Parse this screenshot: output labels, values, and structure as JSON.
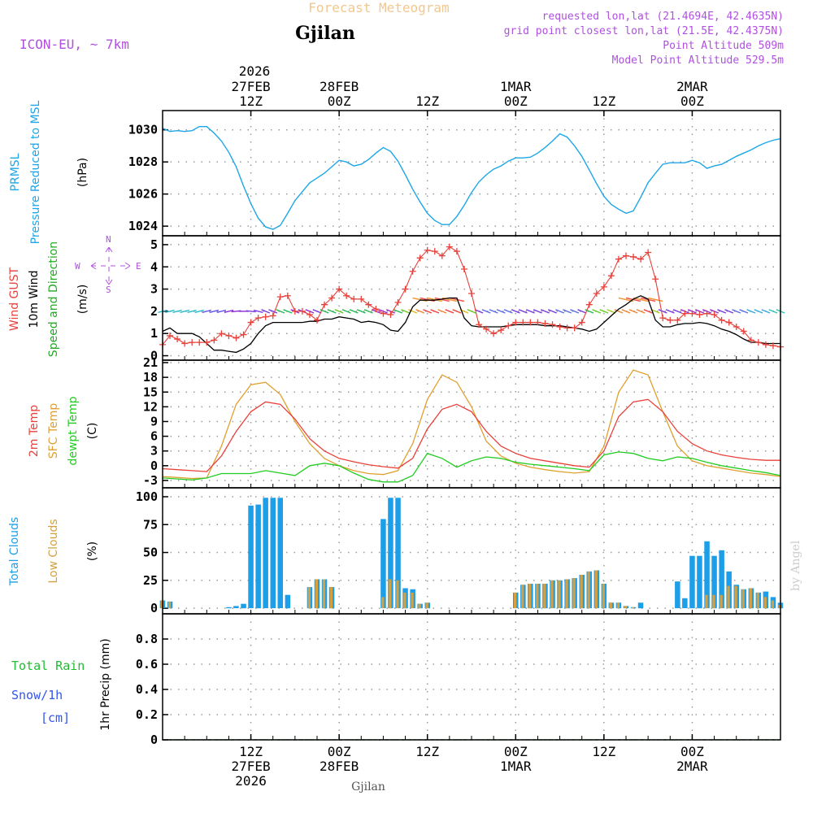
{
  "header": {
    "title": "Forecast Meteogram",
    "station": "Gjilan",
    "model": "ICON-EU, ~ 7km",
    "requested": "requested lon,lat (21.4694E, 42.4635N)",
    "gridpoint": "grid point closest lon,lat (21.5E, 42.4375N)",
    "point_altitude": "Point Altitude 509m",
    "model_altitude": "Model Point Altitude 529.5m",
    "footer_station": "Gjilan",
    "credit": "by Angel"
  },
  "time_axis": {
    "start_hour": 0,
    "end_hour": 84,
    "top_year": "2026",
    "ticks": [
      {
        "h": 12,
        "top": [
          "27FEB",
          "12Z"
        ],
        "bottom": [
          "12Z",
          "27FEB",
          "2026"
        ]
      },
      {
        "h": 24,
        "top": [
          "28FEB",
          "00Z"
        ],
        "bottom": [
          "00Z",
          "28FEB"
        ]
      },
      {
        "h": 36,
        "top": [
          "12Z"
        ],
        "bottom": [
          "12Z"
        ]
      },
      {
        "h": 48,
        "top": [
          "1MAR",
          "00Z"
        ],
        "bottom": [
          "00Z",
          "1MAR"
        ]
      },
      {
        "h": 60,
        "top": [
          "12Z"
        ],
        "bottom": [
          "12Z"
        ]
      },
      {
        "h": 72,
        "top": [
          "2MAR",
          "00Z"
        ],
        "bottom": [
          "00Z",
          "2MAR"
        ]
      }
    ]
  },
  "panels": {
    "pressure": {
      "label1": "PRMSL",
      "label2": "Pressure Reduced to MSL",
      "unit": "(hPa)"
    },
    "wind": {
      "label_gust": "Wind GUST",
      "label_wind": "10m Wind",
      "label_dir": "Speed and Direction",
      "unit": "(m/s)",
      "compass": {
        "n": "N",
        "s": "S",
        "e": "E",
        "w": "W"
      }
    },
    "temp": {
      "label_2m": "2m Temp",
      "label_sfc": "SFC Temp",
      "label_dew": "dewpt Temp",
      "unit": "(C)"
    },
    "clouds": {
      "label_total": "Total Clouds",
      "label_low": "Low Clouds",
      "unit": "(%)"
    },
    "precip": {
      "label_rain": "Total  Rain",
      "label_snow": "Snow/1h",
      "label_cm": "[cm]",
      "unit": "1hr Precip (mm)"
    }
  },
  "colors": {
    "pressure": "#1ca6e8",
    "gust": "#e8403a",
    "wind": "#000000",
    "temp2m": "#e8403a",
    "sfc": "#e0a030",
    "dew": "#22cc22",
    "total_cloud": "#1c9ee8",
    "low_cloud": "#d4a040",
    "rain": "#22bb33",
    "snow": "#3355ee",
    "title": "#f0c890",
    "meta": "#b050e0",
    "compass": "#b050e0"
  },
  "chart_data": [
    {
      "type": "line",
      "name": "PRMSL",
      "ylabel": "hPa",
      "ylim": [
        1023.4,
        1031.2
      ],
      "yticks": [
        1024,
        1026,
        1028,
        1030
      ],
      "x": [
        0,
        1,
        2,
        3,
        4,
        5,
        6,
        7,
        8,
        9,
        10,
        11,
        12,
        13,
        14,
        15,
        16,
        17,
        18,
        19,
        20,
        21,
        22,
        23,
        24,
        25,
        26,
        27,
        28,
        29,
        30,
        31,
        32,
        33,
        34,
        35,
        36,
        37,
        38,
        39,
        40,
        41,
        42,
        43,
        44,
        45,
        46,
        47,
        48,
        49,
        50,
        51,
        52,
        53,
        54,
        55,
        56,
        57,
        58,
        59,
        60,
        61,
        62,
        63,
        64,
        65,
        66,
        67,
        68,
        69,
        70,
        71,
        72,
        73,
        74,
        75,
        76,
        77,
        78,
        79,
        80,
        81,
        82,
        83,
        84
      ],
      "values": [
        1030.1,
        1029.9,
        1029.95,
        1029.9,
        1029.95,
        1030.2,
        1030.2,
        1029.8,
        1029.3,
        1028.6,
        1027.7,
        1026.5,
        1025.4,
        1024.5,
        1023.95,
        1023.8,
        1024.05,
        1024.8,
        1025.6,
        1026.15,
        1026.7,
        1027.0,
        1027.3,
        1027.7,
        1028.1,
        1028.0,
        1027.75,
        1027.85,
        1028.15,
        1028.55,
        1028.9,
        1028.65,
        1028.05,
        1027.2,
        1026.3,
        1025.5,
        1024.8,
        1024.35,
        1024.1,
        1024.1,
        1024.6,
        1025.3,
        1026.1,
        1026.75,
        1027.2,
        1027.55,
        1027.75,
        1028.05,
        1028.25,
        1028.25,
        1028.3,
        1028.55,
        1028.9,
        1029.3,
        1029.75,
        1029.55,
        1029.0,
        1028.35,
        1027.5,
        1026.65,
        1025.85,
        1025.35,
        1025.05,
        1024.8,
        1024.95,
        1025.8,
        1026.7,
        1027.3,
        1027.85,
        1027.95,
        1027.95,
        1027.95,
        1028.1,
        1027.95,
        1027.6,
        1027.75,
        1027.85,
        1028.1,
        1028.35,
        1028.55,
        1028.75,
        1029.0,
        1029.2,
        1029.35,
        1029.45
      ]
    },
    {
      "type": "line",
      "name": "Wind",
      "ylabel": "m/s",
      "ylim": [
        -0.2,
        5.4
      ],
      "yticks": [
        0,
        1,
        2,
        3,
        4,
        5
      ],
      "x": [
        0,
        1,
        2,
        3,
        4,
        5,
        6,
        7,
        8,
        9,
        10,
        11,
        12,
        13,
        14,
        15,
        16,
        17,
        18,
        19,
        20,
        21,
        22,
        23,
        24,
        25,
        26,
        27,
        28,
        29,
        30,
        31,
        32,
        33,
        34,
        35,
        36,
        37,
        38,
        39,
        40,
        41,
        42,
        43,
        44,
        45,
        46,
        47,
        48,
        49,
        50,
        51,
        52,
        53,
        54,
        55,
        56,
        57,
        58,
        59,
        60,
        61,
        62,
        63,
        64,
        65,
        66,
        67,
        68,
        69,
        70,
        71,
        72,
        73,
        74,
        75,
        76,
        77,
        78,
        79,
        80,
        81,
        82,
        83,
        84
      ],
      "wind": [
        1.1,
        1.25,
        1.0,
        1.0,
        1.0,
        0.85,
        0.55,
        0.25,
        0.25,
        0.2,
        0.15,
        0.3,
        0.55,
        1.0,
        1.35,
        1.5,
        1.5,
        1.5,
        1.5,
        1.5,
        1.55,
        1.55,
        1.65,
        1.65,
        1.75,
        1.7,
        1.65,
        1.5,
        1.55,
        1.5,
        1.4,
        1.15,
        1.1,
        1.5,
        2.2,
        2.5,
        2.5,
        2.5,
        2.55,
        2.6,
        2.6,
        1.7,
        1.35,
        1.3,
        1.3,
        1.3,
        1.3,
        1.35,
        1.4,
        1.4,
        1.4,
        1.4,
        1.35,
        1.35,
        1.35,
        1.3,
        1.25,
        1.2,
        1.1,
        1.2,
        1.5,
        1.8,
        2.1,
        2.3,
        2.55,
        2.7,
        2.55,
        1.6,
        1.3,
        1.3,
        1.4,
        1.45,
        1.45,
        1.5,
        1.45,
        1.35,
        1.2,
        1.1,
        0.95,
        0.75,
        0.6,
        0.6,
        0.55,
        0.55,
        0.55
      ],
      "gust": [
        0.5,
        0.9,
        0.75,
        0.55,
        0.6,
        0.6,
        0.6,
        0.7,
        1.0,
        0.9,
        0.8,
        0.95,
        1.5,
        1.7,
        1.75,
        1.8,
        2.65,
        2.7,
        2.0,
        2.0,
        1.85,
        1.6,
        2.3,
        2.6,
        3.0,
        2.7,
        2.55,
        2.55,
        2.3,
        2.1,
        1.9,
        1.85,
        2.4,
        3.0,
        3.8,
        4.4,
        4.75,
        4.7,
        4.5,
        4.9,
        4.7,
        3.9,
        2.8,
        1.4,
        1.2,
        1.0,
        1.15,
        1.35,
        1.5,
        1.5,
        1.5,
        1.5,
        1.45,
        1.4,
        1.3,
        1.25,
        1.25,
        1.5,
        2.3,
        2.8,
        3.1,
        3.6,
        4.35,
        4.5,
        4.45,
        4.35,
        4.65,
        3.45,
        1.7,
        1.6,
        1.6,
        1.9,
        1.9,
        1.85,
        1.9,
        1.85,
        1.6,
        1.5,
        1.3,
        1.1,
        0.7,
        0.6,
        0.5,
        0.45,
        0.4
      ],
      "dir_arrows_from": [
        110,
        110,
        110,
        110,
        110,
        110,
        110,
        110,
        110,
        110,
        100,
        90,
        80,
        70,
        60,
        60,
        60,
        60,
        60,
        60,
        60,
        60,
        60,
        60,
        60,
        60,
        60,
        60,
        60,
        60,
        60,
        60,
        60,
        60,
        60,
        60,
        60,
        60,
        60,
        60,
        60,
        60,
        60,
        60,
        60,
        60,
        60,
        60,
        60,
        60,
        60,
        60,
        60,
        60,
        60,
        60,
        60,
        60,
        60,
        60,
        60,
        60,
        60,
        60,
        60,
        60,
        60,
        60,
        60,
        60,
        60,
        60,
        60,
        60,
        60,
        60,
        60,
        60,
        60,
        60,
        60,
        60,
        60,
        60,
        60
      ]
    },
    {
      "type": "line",
      "name": "Temperature",
      "ylabel": "C",
      "ylim": [
        -4.5,
        21.5
      ],
      "yticks": [
        -3,
        0,
        3,
        6,
        9,
        12,
        15,
        18,
        21
      ],
      "x": [
        0,
        2,
        4,
        6,
        8,
        10,
        12,
        14,
        16,
        18,
        20,
        22,
        24,
        26,
        28,
        30,
        32,
        34,
        36,
        38,
        40,
        42,
        44,
        46,
        48,
        50,
        52,
        54,
        56,
        58,
        60,
        62,
        64,
        66,
        68,
        70,
        72,
        74,
        76,
        78,
        80,
        82,
        84
      ],
      "t2m": [
        -0.6,
        -0.8,
        -1.0,
        -1.2,
        2.0,
        7.0,
        11.0,
        13.0,
        12.5,
        9.5,
        5.5,
        3.0,
        1.5,
        0.8,
        0.2,
        -0.2,
        -0.5,
        1.5,
        7.5,
        11.5,
        12.5,
        11.0,
        7.0,
        4.0,
        2.5,
        1.5,
        1.0,
        0.5,
        0.0,
        -0.3,
        3.0,
        10.0,
        13.0,
        13.5,
        11.0,
        7.0,
        4.5,
        3.0,
        2.2,
        1.7,
        1.3,
        1.1,
        1.1
      ],
      "sfc": [
        -2.2,
        -2.4,
        -2.6,
        -2.5,
        4.0,
        12.5,
        16.5,
        17.0,
        14.5,
        9.0,
        4.5,
        1.5,
        0.0,
        -1.0,
        -1.6,
        -1.8,
        -1.0,
        4.5,
        13.5,
        18.5,
        17.0,
        12.0,
        5.0,
        2.0,
        0.5,
        -0.3,
        -0.8,
        -1.2,
        -1.5,
        -1.2,
        4.0,
        15.0,
        19.5,
        18.5,
        11.0,
        4.0,
        1.0,
        0.0,
        -0.5,
        -1.0,
        -1.5,
        -1.8,
        -2.2
      ],
      "dew": [
        -2.5,
        -2.7,
        -2.9,
        -2.5,
        -1.6,
        -1.6,
        -1.6,
        -1.0,
        -1.5,
        -2.0,
        0.0,
        0.5,
        0.0,
        -1.5,
        -2.8,
        -3.3,
        -3.3,
        -2.0,
        2.5,
        1.5,
        -0.3,
        1.0,
        1.8,
        1.5,
        0.7,
        0.3,
        0.0,
        -0.3,
        -0.6,
        -1.0,
        2.2,
        2.8,
        2.5,
        1.5,
        1.0,
        1.8,
        1.5,
        0.7,
        0.0,
        -0.5,
        -1.0,
        -1.4,
        -2.0
      ]
    },
    {
      "type": "bar",
      "name": "Clouds",
      "ylabel": "%",
      "ylim": [
        -5,
        108
      ],
      "yticks": [
        0,
        25,
        50,
        75,
        100
      ],
      "x": [
        0,
        1,
        2,
        3,
        4,
        5,
        6,
        7,
        8,
        9,
        10,
        11,
        12,
        13,
        14,
        15,
        16,
        17,
        18,
        19,
        20,
        21,
        22,
        23,
        24,
        25,
        26,
        27,
        28,
        29,
        30,
        31,
        32,
        33,
        34,
        35,
        36,
        37,
        38,
        39,
        40,
        41,
        42,
        43,
        44,
        45,
        46,
        47,
        48,
        49,
        50,
        51,
        52,
        53,
        54,
        55,
        56,
        57,
        58,
        59,
        60,
        61,
        62,
        63,
        64,
        65,
        66,
        67,
        68,
        69,
        70,
        71,
        72,
        73,
        74,
        75,
        76,
        77,
        78,
        79,
        80,
        81,
        82,
        83,
        84
      ],
      "total": [
        7,
        6,
        0,
        0,
        0,
        0,
        0,
        0,
        0,
        1,
        2,
        4,
        92,
        93,
        99,
        99,
        99,
        12,
        0,
        0,
        19,
        26,
        26,
        19,
        0,
        0,
        0,
        0,
        0,
        0,
        80,
        99,
        99,
        18,
        17,
        4,
        5,
        0,
        0,
        0,
        0,
        0,
        0,
        0,
        0,
        0,
        0,
        0,
        14,
        21,
        22,
        22,
        22,
        25,
        25,
        26,
        27,
        30,
        33,
        34,
        22,
        5,
        5,
        2,
        1,
        5,
        0,
        0,
        0,
        0,
        24,
        9,
        47,
        47,
        60,
        47,
        52,
        33,
        21,
        17,
        18,
        14,
        15,
        10,
        5
      ],
      "low": [
        7,
        6,
        0,
        0,
        0,
        0,
        0,
        0,
        0,
        0,
        0,
        0,
        0,
        0,
        0,
        0,
        0,
        0,
        0,
        0,
        19,
        26,
        26,
        19,
        0,
        0,
        0,
        0,
        0,
        0,
        10,
        26,
        25,
        14,
        14,
        4,
        5,
        0,
        0,
        0,
        0,
        0,
        0,
        0,
        0,
        0,
        0,
        0,
        14,
        21,
        22,
        22,
        22,
        25,
        25,
        26,
        27,
        30,
        33,
        34,
        22,
        5,
        5,
        2,
        1,
        0,
        0,
        0,
        0,
        0,
        0,
        0,
        0,
        0,
        12,
        12,
        12,
        20,
        20,
        17,
        18,
        14,
        10,
        7,
        3
      ]
    },
    {
      "type": "bar",
      "name": "Precipitation",
      "ylabel": "1hr Precip (mm)",
      "ylim": [
        0,
        1.0
      ],
      "yticks": [
        0,
        0.2,
        0.4,
        0.6,
        0.8
      ],
      "x": [
        0,
        84
      ],
      "rain": [
        0,
        0
      ],
      "snow": [
        0,
        0
      ]
    }
  ]
}
